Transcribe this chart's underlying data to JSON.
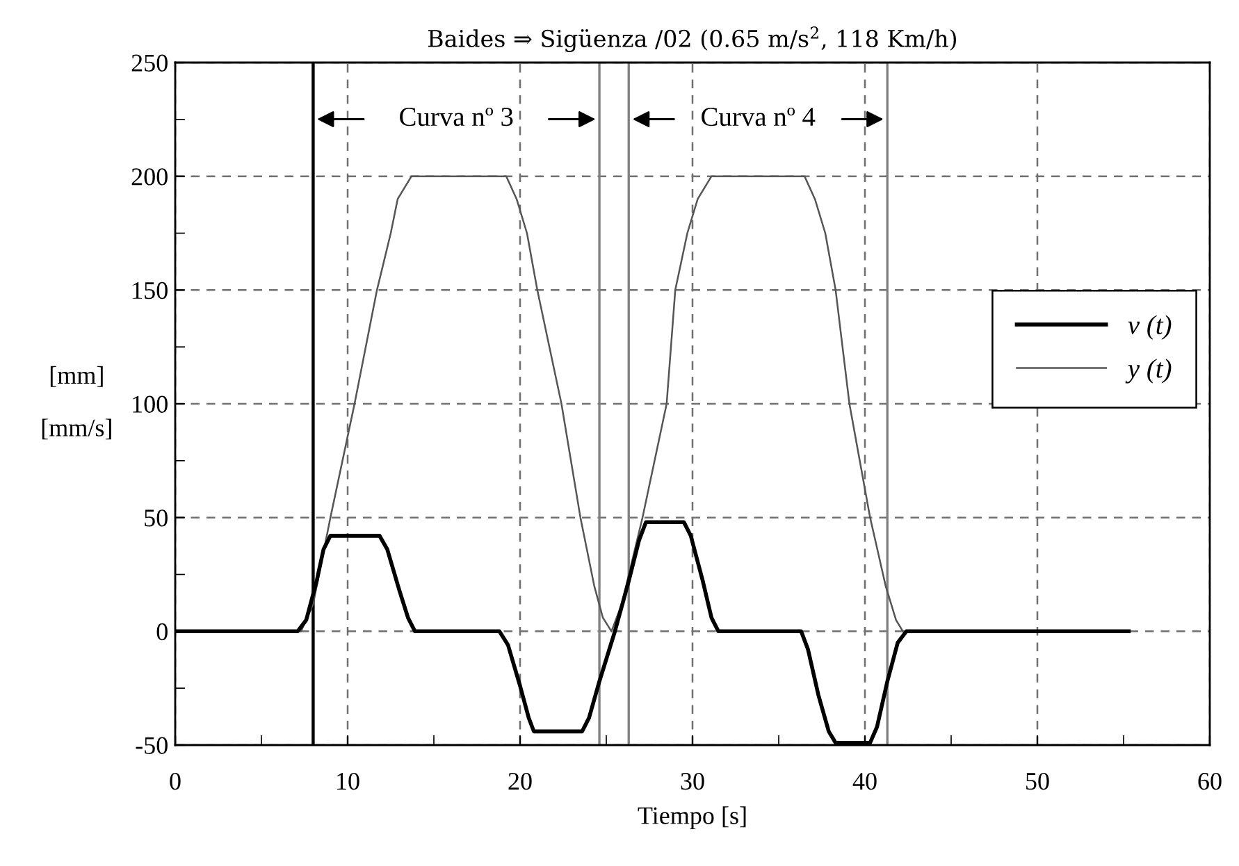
{
  "chart_data": {
    "type": "line",
    "title": "Baides ⇒ Sigüenza /02 (0.65 m/s$^{2}$, 118 Km/h)",
    "xlabel": "Tiempo [s]",
    "ylabel": "[mm]\n\n[mm/s]",
    "series": [
      {
        "name": "v (t)",
        "color": "#000000",
        "x": [
          0,
          7.1,
          7.6,
          8.2,
          8.6,
          9.0,
          11.85,
          12.3,
          13.0,
          13.5,
          13.9,
          18.8,
          19.3,
          20.0,
          20.5,
          20.8,
          23.6,
          24.0,
          24.6,
          25.5,
          26.3,
          26.9,
          27.3,
          29.5,
          29.9,
          30.6,
          31.1,
          31.5,
          36.3,
          36.7,
          37.3,
          37.9,
          38.3,
          40.3,
          40.7,
          41.3,
          41.9,
          42.4,
          55.3
        ],
        "values": [
          0,
          0,
          5,
          22,
          36,
          42,
          42,
          36,
          18,
          6,
          0,
          0,
          -6,
          -24,
          -38,
          -44,
          -44,
          -38,
          -22,
          0,
          22,
          40,
          48,
          48,
          42,
          22,
          6,
          0,
          0,
          -8,
          -28,
          -44,
          -49,
          -49,
          -42,
          -22,
          -5,
          0,
          0
        ]
      },
      {
        "name": "y (t)",
        "color": "#555555",
        "x": [
          0,
          7.3,
          8.0,
          9.0,
          10.4,
          11.7,
          12.5,
          12.9,
          13.7,
          19.2,
          19.8,
          20.4,
          21.0,
          22.4,
          23.5,
          24.3,
          24.8,
          25.3,
          25.9,
          27.1,
          28.5,
          29.0,
          29.7,
          30.3,
          31.1,
          36.5,
          37.1,
          37.7,
          38.3,
          39.1,
          40.3,
          41.2,
          41.8,
          42.2,
          55.3
        ],
        "values": [
          0,
          0,
          12,
          50,
          100,
          150,
          175,
          190,
          200,
          200,
          190,
          175,
          150,
          100,
          50,
          20,
          6,
          0,
          12,
          50,
          100,
          150,
          175,
          190,
          200,
          200,
          190,
          175,
          150,
          100,
          50,
          20,
          5,
          0,
          0
        ]
      }
    ],
    "xlim": [
      0,
      60
    ],
    "xticks": [
      0,
      {
        "value": 5,
        "label": null
      },
      10,
      {
        "value": 15,
        "label": null
      },
      20,
      {
        "value": 25,
        "label": null
      },
      30,
      {
        "value": 35,
        "label": null
      },
      40,
      {
        "value": 45,
        "label": null
      },
      50,
      {
        "value": 55,
        "label": null
      },
      60
    ],
    "ylim": [
      -50,
      250
    ],
    "yticks": [
      -50,
      {
        "value": -25,
        "label": null
      },
      0,
      {
        "value": 25,
        "label": null
      },
      50,
      {
        "value": 75,
        "label": null
      },
      100,
      {
        "value": 125,
        "label": null
      },
      150,
      {
        "value": 175,
        "label": null
      },
      200,
      {
        "value": 225,
        "label": null
      },
      250
    ],
    "ref_lines": [
      {
        "axis": "x",
        "value": 8,
        "color": "#000000"
      },
      {
        "axis": "x",
        "value": 24.6,
        "color": "#808080"
      },
      {
        "axis": "x",
        "value": 26.3,
        "color": "#808080"
      },
      {
        "axis": "x",
        "value": 41.3,
        "color": "#808080"
      }
    ],
    "annotations": [
      "Curva nº 3",
      "Curva nº 4"
    ],
    "grid": true,
    "legend": "right",
    "marker": "none",
    "line_style": "solid"
  }
}
